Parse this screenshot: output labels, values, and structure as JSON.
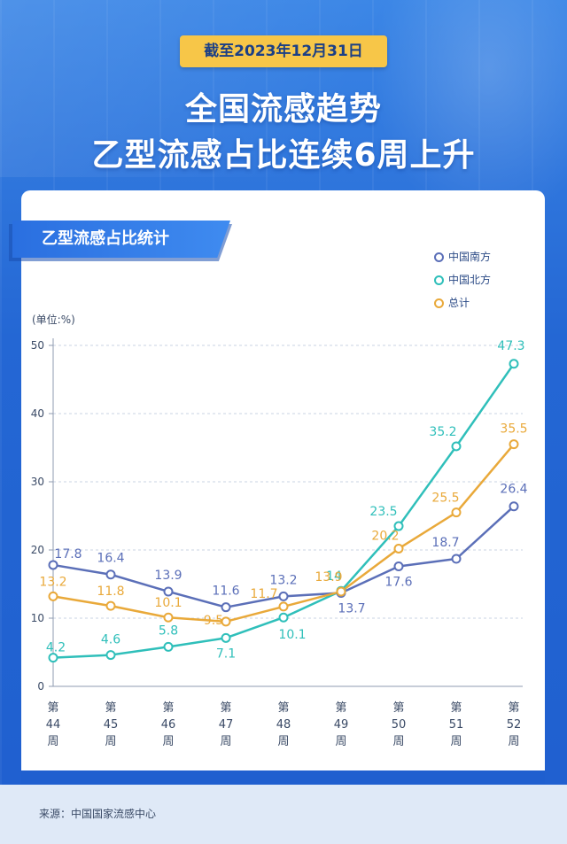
{
  "header": {
    "date_badge": "截至2023年12月31日",
    "title_line1": "全国流感趋势",
    "title_line2": "乙型流感占比连续6周上升"
  },
  "card": {
    "title": "乙型流感占比统计"
  },
  "footer": {
    "source": "来源：中国国家流感中心"
  },
  "chart_data": {
    "type": "line",
    "title": "乙型流感占比统计",
    "unit_label": "(单位:%)",
    "x_tick_labels": [
      [
        "第",
        "44",
        "周"
      ],
      [
        "第",
        "45",
        "周"
      ],
      [
        "第",
        "46",
        "周"
      ],
      [
        "第",
        "47",
        "周"
      ],
      [
        "第",
        "48",
        "周"
      ],
      [
        "第",
        "49",
        "周"
      ],
      [
        "第",
        "50",
        "周"
      ],
      [
        "第",
        "51",
        "周"
      ],
      [
        "第",
        "52",
        "周"
      ]
    ],
    "categories": [
      "第44周",
      "第45周",
      "第46周",
      "第47周",
      "第48周",
      "第49周",
      "第50周",
      "第51周",
      "第52周"
    ],
    "ylim": [
      0,
      50
    ],
    "y_ticks": [
      0,
      10,
      20,
      30,
      40,
      50
    ],
    "grid": "horizontal-dashed",
    "legend_position": "top-right",
    "series": [
      {
        "name": "中国南方",
        "color": "#5b6fb8",
        "values": [
          17.8,
          16.4,
          13.9,
          11.6,
          13.2,
          13.7,
          17.6,
          18.7,
          26.4
        ],
        "labels": [
          "17.8",
          "16.4",
          "13.9",
          "11.6",
          "13.2",
          "13.7",
          "17.6",
          "18.7",
          "26.4"
        ]
      },
      {
        "name": "中国北方",
        "color": "#2fbfba",
        "values": [
          4.2,
          4.6,
          5.8,
          7.1,
          10.1,
          14,
          23.5,
          35.2,
          47.3
        ],
        "labels": [
          "4.2",
          "4.6",
          "5.8",
          "7.1",
          "10.1",
          "14",
          "23.5",
          "35.2",
          "47.3"
        ]
      },
      {
        "name": "总计",
        "color": "#e9a93a",
        "values": [
          13.2,
          11.8,
          10.1,
          9.5,
          11.7,
          13.9,
          20.2,
          25.5,
          35.5
        ],
        "labels": [
          "13.2",
          "11.8",
          "10.1",
          "9.5",
          "11.7",
          "13.9",
          "20.2",
          "25.5",
          "35.5"
        ]
      }
    ]
  }
}
